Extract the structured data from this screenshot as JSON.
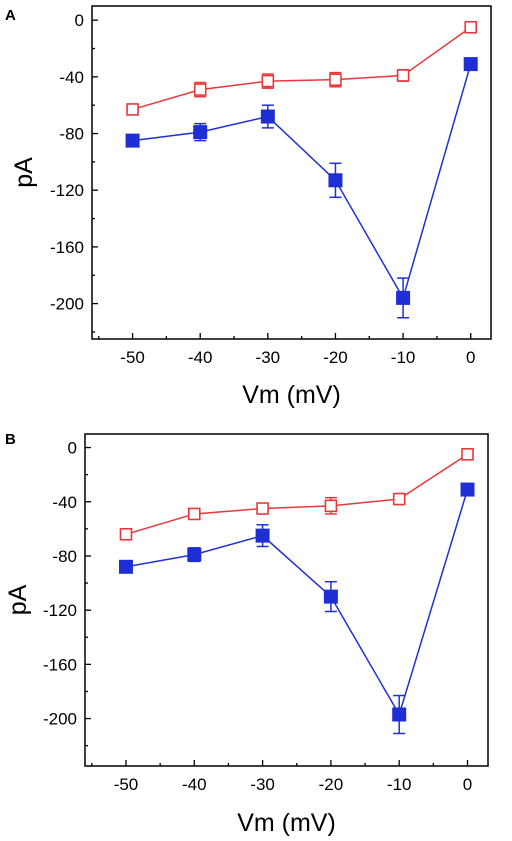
{
  "chart_data": [
    {
      "type": "line",
      "panel_label": "A",
      "xlabel": "Vm (mV)",
      "ylabel": "pA",
      "xlim": [
        -56,
        3
      ],
      "ylim": [
        -225,
        10
      ],
      "xticks": [
        -50,
        -40,
        -30,
        -20,
        -10,
        0
      ],
      "yticks": [
        0,
        -40,
        -80,
        -120,
        -160,
        -200
      ],
      "x_tick_labels": [
        "-50",
        "-40",
        "-30",
        "-20",
        "-10",
        "0"
      ],
      "y_tick_labels": [
        "0",
        "-40",
        "-80",
        "-120",
        "-160",
        "-200"
      ],
      "grid": false,
      "series": [
        {
          "marker": "open-square",
          "color": "#e8383b",
          "x": [
            -50,
            -40,
            -30,
            -20,
            -10,
            0
          ],
          "values": [
            -63,
            -49,
            -43,
            -42,
            -39,
            -5
          ],
          "errors": [
            3,
            5,
            5,
            5,
            4,
            2
          ]
        },
        {
          "marker": "filled-square",
          "color": "#1f2fd6",
          "x": [
            -50,
            -40,
            -30,
            -20,
            -10,
            0
          ],
          "values": [
            -85,
            -79,
            -68,
            -113,
            -196,
            -31
          ],
          "errors": [
            4,
            6,
            8,
            12,
            14,
            3
          ]
        }
      ]
    },
    {
      "type": "line",
      "panel_label": "B",
      "xlabel": "Vm (mV)",
      "ylabel": "pA",
      "xlim": [
        -56,
        3
      ],
      "ylim": [
        -235,
        10
      ],
      "xticks": [
        -50,
        -40,
        -30,
        -20,
        -10,
        0
      ],
      "yticks": [
        0,
        -40,
        -80,
        -120,
        -160,
        -200
      ],
      "x_tick_labels": [
        "-50",
        "-40",
        "-30",
        "-20",
        "-10",
        "0"
      ],
      "y_tick_labels": [
        "0",
        "-40",
        "-80",
        "-120",
        "-160",
        "-200"
      ],
      "grid": false,
      "series": [
        {
          "marker": "open-square",
          "color": "#e8383b",
          "x": [
            -50,
            -40,
            -30,
            -20,
            -10,
            0
          ],
          "values": [
            -64,
            -49,
            -45,
            -43,
            -38,
            -5
          ],
          "errors": [
            3,
            3,
            3,
            6,
            4,
            2
          ]
        },
        {
          "marker": "filled-square",
          "color": "#1f2fd6",
          "x": [
            -50,
            -40,
            -30,
            -20,
            -10,
            0
          ],
          "values": [
            -88,
            -79,
            -65,
            -110,
            -197,
            -31
          ],
          "errors": [
            4,
            5,
            8,
            11,
            14,
            3
          ]
        }
      ]
    }
  ]
}
